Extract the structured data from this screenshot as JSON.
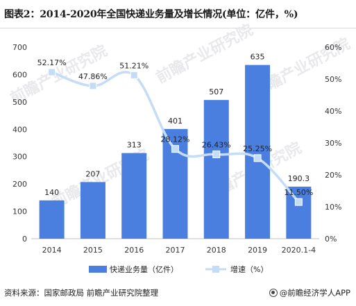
{
  "title": "图表2：2014-2020年全国快递业务量及增长情况(单位：亿件，%)",
  "source": "资料来源：国家邮政局 前瞻产业研究院整理",
  "credit": "@前瞻经济学人APP",
  "credit_icon": "weibo-style-icon",
  "watermark": "前瞻产业研究院",
  "chart_data": {
    "type": "bar+line",
    "categories": [
      "2014",
      "2015",
      "2016",
      "2017",
      "2018",
      "2019",
      "2020.1-4"
    ],
    "series": [
      {
        "name": "快递业务量（亿件）",
        "type": "bar",
        "axis": "left",
        "color": "#4a7fe0",
        "values": [
          140,
          207,
          313,
          401,
          507,
          635,
          190.3
        ],
        "labels": [
          "140",
          "207",
          "313",
          "401",
          "507",
          "635",
          "190.3"
        ]
      },
      {
        "name": "增速（%）",
        "type": "line",
        "axis": "right",
        "color": "#c5dcf6",
        "values": [
          52.17,
          47.86,
          51.21,
          28.12,
          26.43,
          25.25,
          11.5
        ],
        "labels": [
          "52.17%",
          "47.86%",
          "51.21%",
          "28.12%",
          "26.43%",
          "25.25%",
          "11.50%"
        ]
      }
    ],
    "y_left": {
      "min": 0,
      "max": 700,
      "ticks": [
        "0",
        "100",
        "200",
        "300",
        "400",
        "500",
        "600",
        "700"
      ]
    },
    "y_right": {
      "min": 0,
      "max": 60,
      "ticks": [
        "0%",
        "10%",
        "20%",
        "30%",
        "40%",
        "50%",
        "60%"
      ]
    },
    "legend_position": "bottom",
    "grid": false
  }
}
